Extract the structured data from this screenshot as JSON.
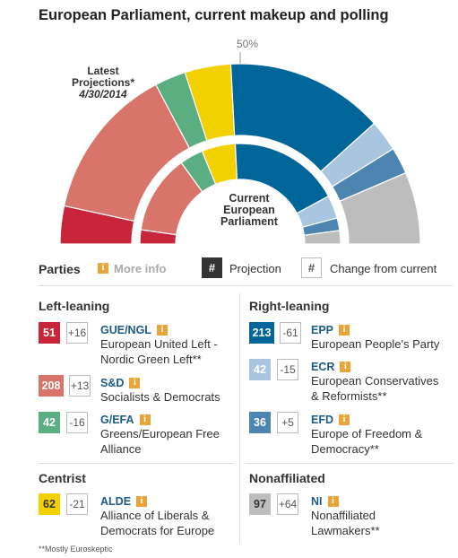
{
  "title": "European Parliament, current makeup and polling",
  "chart_labels": {
    "half_mark": "50%",
    "latest_line1": "Latest",
    "latest_line2": "Projections*",
    "latest_date": "4/30/2014",
    "current_line1": "Current",
    "current_line2": "European",
    "current_line3": "Parliament"
  },
  "chart_data": {
    "type": "semicircle-parliament",
    "rings": [
      {
        "name": "Latest Projections*",
        "series": [
          {
            "party": "GUE/NGL",
            "seats": 51,
            "color": "#c8243a"
          },
          {
            "party": "S&D",
            "seats": 208,
            "color": "#d9746a"
          },
          {
            "party": "G/EFA",
            "seats": 42,
            "color": "#5aae82"
          },
          {
            "party": "ALDE",
            "seats": 62,
            "color": "#f3d000"
          },
          {
            "party": "EPP",
            "seats": 213,
            "color": "#006699"
          },
          {
            "party": "ECR",
            "seats": 42,
            "color": "#aac5df"
          },
          {
            "party": "EFD",
            "seats": 36,
            "color": "#4c86b0"
          },
          {
            "party": "NI",
            "seats": 97,
            "color": "#bdbdbd"
          }
        ]
      },
      {
        "name": "Current European Parliament",
        "series": [
          {
            "party": "GUE/NGL",
            "seats": 35,
            "color": "#c8243a"
          },
          {
            "party": "S&D",
            "seats": 195,
            "color": "#d9746a"
          },
          {
            "party": "G/EFA",
            "seats": 58,
            "color": "#5aae82"
          },
          {
            "party": "ALDE",
            "seats": 83,
            "color": "#f3d000"
          },
          {
            "party": "EPP",
            "seats": 274,
            "color": "#006699"
          },
          {
            "party": "ECR",
            "seats": 57,
            "color": "#aac5df"
          },
          {
            "party": "EFD",
            "seats": 31,
            "color": "#4c86b0"
          },
          {
            "party": "NI",
            "seats": 33,
            "color": "#bdbdbd"
          }
        ]
      }
    ]
  },
  "legend": {
    "parties_label": "Parties",
    "more_info": "More info",
    "hash": "#",
    "projection_label": "Projection",
    "change_label": "Change from current"
  },
  "sections": {
    "left": "Left-leaning",
    "right": "Right-leaning",
    "centrist": "Centrist",
    "nonaffiliated": "Nonaffiliated"
  },
  "parties": {
    "gue": {
      "seats": "51",
      "change": "+16",
      "abbr": "GUE/NGL",
      "line1": "European United Left -",
      "line2": "Nordic Green Left**",
      "color": "#c8243a"
    },
    "sd": {
      "seats": "208",
      "change": "+13",
      "abbr": "S&D",
      "line1": "Socialists & Democrats",
      "color": "#d9746a"
    },
    "gefa": {
      "seats": "42",
      "change": "-16",
      "abbr": "G/EFA",
      "line1": "Greens/European Free",
      "line2": "Alliance",
      "color": "#5aae82"
    },
    "alde": {
      "seats": "62",
      "change": "-21",
      "abbr": "ALDE",
      "line1": "Alliance of Liberals &",
      "line2": "Democrats for Europe",
      "color": "#f3d000"
    },
    "epp": {
      "seats": "213",
      "change": "-61",
      "abbr": "EPP",
      "line1": "European People's Party",
      "color": "#006699"
    },
    "ecr": {
      "seats": "42",
      "change": "-15",
      "abbr": "ECR",
      "line1": "European Conservatives",
      "line2": "& Reformists**",
      "color": "#aac5df"
    },
    "efd": {
      "seats": "36",
      "change": "+5",
      "abbr": "EFD",
      "line1": "Europe of Freedom &",
      "line2": "Democracy**",
      "color": "#4c86b0"
    },
    "ni": {
      "seats": "97",
      "change": "+64",
      "abbr": "NI",
      "line1": "Nonaffiliated",
      "line2": "Lawmakers**",
      "color": "#bdbdbd"
    }
  },
  "footnote": "**Mostly Euroskeptic"
}
